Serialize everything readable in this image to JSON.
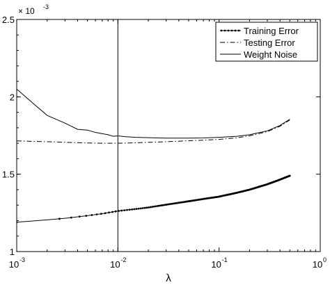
{
  "chart_data": {
    "type": "line",
    "xlabel": "λ",
    "ylabel": "",
    "xscale": "log",
    "xlim": [
      0.001,
      1
    ],
    "ylim": [
      1.0,
      2.5
    ],
    "y_multiplier_label": "× 10",
    "y_multiplier_exponent": "-3",
    "x_ticks": [
      {
        "value": 0.001,
        "base": "10",
        "exp": "-3"
      },
      {
        "value": 0.01,
        "base": "10",
        "exp": "-2"
      },
      {
        "value": 0.1,
        "base": "10",
        "exp": "-1"
      },
      {
        "value": 1,
        "base": "10",
        "exp": "0"
      }
    ],
    "y_ticks": [
      {
        "value": 1.0,
        "label": "1"
      },
      {
        "value": 1.5,
        "label": "1.5"
      },
      {
        "value": 2.0,
        "label": "2"
      },
      {
        "value": 2.5,
        "label": "2.5"
      }
    ],
    "vertical_line_x": 0.01,
    "grid": false,
    "legend_position": "top-right",
    "series": [
      {
        "name": "Training Error",
        "style": "solid-dots",
        "x": [
          0.001,
          0.002,
          0.003,
          0.005,
          0.007,
          0.01,
          0.015,
          0.02,
          0.03,
          0.05,
          0.07,
          0.1,
          0.15,
          0.2,
          0.3,
          0.4,
          0.5
        ],
        "y": [
          1.19,
          1.205,
          1.215,
          1.232,
          1.245,
          1.262,
          1.275,
          1.285,
          1.303,
          1.325,
          1.34,
          1.355,
          1.38,
          1.4,
          1.435,
          1.465,
          1.49
        ]
      },
      {
        "name": "Testing Error",
        "style": "dash-dot",
        "x": [
          0.001,
          0.002,
          0.003,
          0.005,
          0.007,
          0.01,
          0.015,
          0.02,
          0.03,
          0.05,
          0.07,
          0.1,
          0.15,
          0.2,
          0.3,
          0.4,
          0.5
        ],
        "y": [
          1.715,
          1.71,
          1.706,
          1.702,
          1.7,
          1.7,
          1.703,
          1.706,
          1.71,
          1.716,
          1.72,
          1.725,
          1.735,
          1.748,
          1.775,
          1.81,
          1.85
        ]
      },
      {
        "name": "Weight Noise",
        "style": "solid",
        "x": [
          0.001,
          0.0015,
          0.002,
          0.003,
          0.004,
          0.005,
          0.006,
          0.007,
          0.008,
          0.009,
          0.01,
          0.012,
          0.015,
          0.02,
          0.025,
          0.03,
          0.04,
          0.05,
          0.07,
          0.1,
          0.15,
          0.2,
          0.3,
          0.4,
          0.5
        ],
        "y": [
          2.05,
          1.95,
          1.88,
          1.83,
          1.79,
          1.785,
          1.77,
          1.762,
          1.755,
          1.745,
          1.748,
          1.742,
          1.738,
          1.736,
          1.734,
          1.733,
          1.733,
          1.733,
          1.734,
          1.738,
          1.745,
          1.755,
          1.78,
          1.815,
          1.855
        ]
      }
    ]
  }
}
